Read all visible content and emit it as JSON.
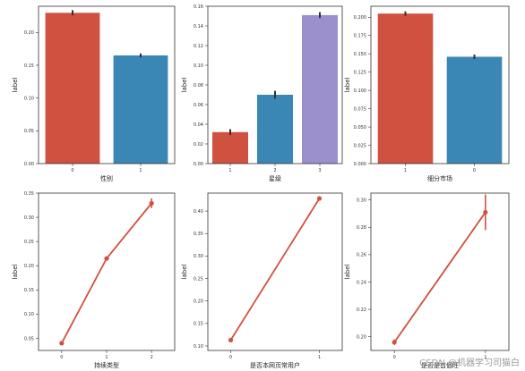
{
  "watermark": "CSDN @机器学习司猫白",
  "chart_data": [
    {
      "type": "bar",
      "categories": [
        "0",
        "1"
      ],
      "values": [
        0.23,
        0.165
      ],
      "errors": [
        0.004,
        0.003
      ],
      "colors": [
        "#d0513f",
        "#3a87b5"
      ],
      "xlabel": "性别",
      "ylabel": "label",
      "ylim": [
        0,
        0.24
      ],
      "yticks": [
        0.0,
        0.05,
        0.1,
        0.15,
        0.2
      ],
      "grid": false
    },
    {
      "type": "bar",
      "categories": [
        "1",
        "2",
        "3"
      ],
      "values": [
        0.032,
        0.07,
        0.151
      ],
      "errors": [
        0.003,
        0.004,
        0.003
      ],
      "colors": [
        "#d0513f",
        "#3a87b5",
        "#9b8fcc"
      ],
      "xlabel": "星级",
      "ylabel": "label",
      "ylim": [
        0,
        0.16
      ],
      "yticks": [
        0.0,
        0.02,
        0.04,
        0.06,
        0.08,
        0.1,
        0.12,
        0.14,
        0.16
      ],
      "grid": false
    },
    {
      "type": "bar",
      "categories": [
        "1",
        "0"
      ],
      "values": [
        0.205,
        0.146
      ],
      "errors": [
        0.003,
        0.003
      ],
      "colors": [
        "#d0513f",
        "#3a87b5"
      ],
      "xlabel": "细分市场",
      "ylabel": "label",
      "ylim": [
        0,
        0.215
      ],
      "yticks": [
        0.0,
        0.025,
        0.05,
        0.075,
        0.1,
        0.125,
        0.15,
        0.175,
        0.2
      ],
      "grid": false
    },
    {
      "type": "line",
      "categories": [
        "0",
        "1",
        "2"
      ],
      "values": [
        0.04,
        0.215,
        0.329
      ],
      "errors": [
        0.002,
        0.003,
        0.01
      ],
      "color": "#d0513f",
      "xlabel": "持续类型",
      "ylabel": "label",
      "ylim": [
        0.025,
        0.35
      ],
      "yticks": [
        0.05,
        0.1,
        0.15,
        0.2,
        0.25,
        0.3,
        0.35
      ],
      "grid": false
    },
    {
      "type": "line",
      "categories": [
        "0",
        "1"
      ],
      "values": [
        0.113,
        0.428
      ],
      "errors": [
        0.002,
        0.004
      ],
      "color": "#d0513f",
      "xlabel": "是否本网页常用户",
      "ylabel": "label",
      "ylim": [
        0.09,
        0.44
      ],
      "yticks": [
        0.1,
        0.15,
        0.2,
        0.25,
        0.3,
        0.35,
        0.4
      ],
      "grid": false
    },
    {
      "type": "line",
      "categories": [
        "0",
        "1"
      ],
      "values": [
        0.196,
        0.291
      ],
      "errors": [
        0.002,
        0.013
      ],
      "color": "#d0513f",
      "xlabel": "是否是首個旺",
      "ylabel": "label",
      "ylim": [
        0.19,
        0.305
      ],
      "yticks": [
        0.2,
        0.22,
        0.24,
        0.26,
        0.28,
        0.3
      ],
      "grid": false
    }
  ]
}
